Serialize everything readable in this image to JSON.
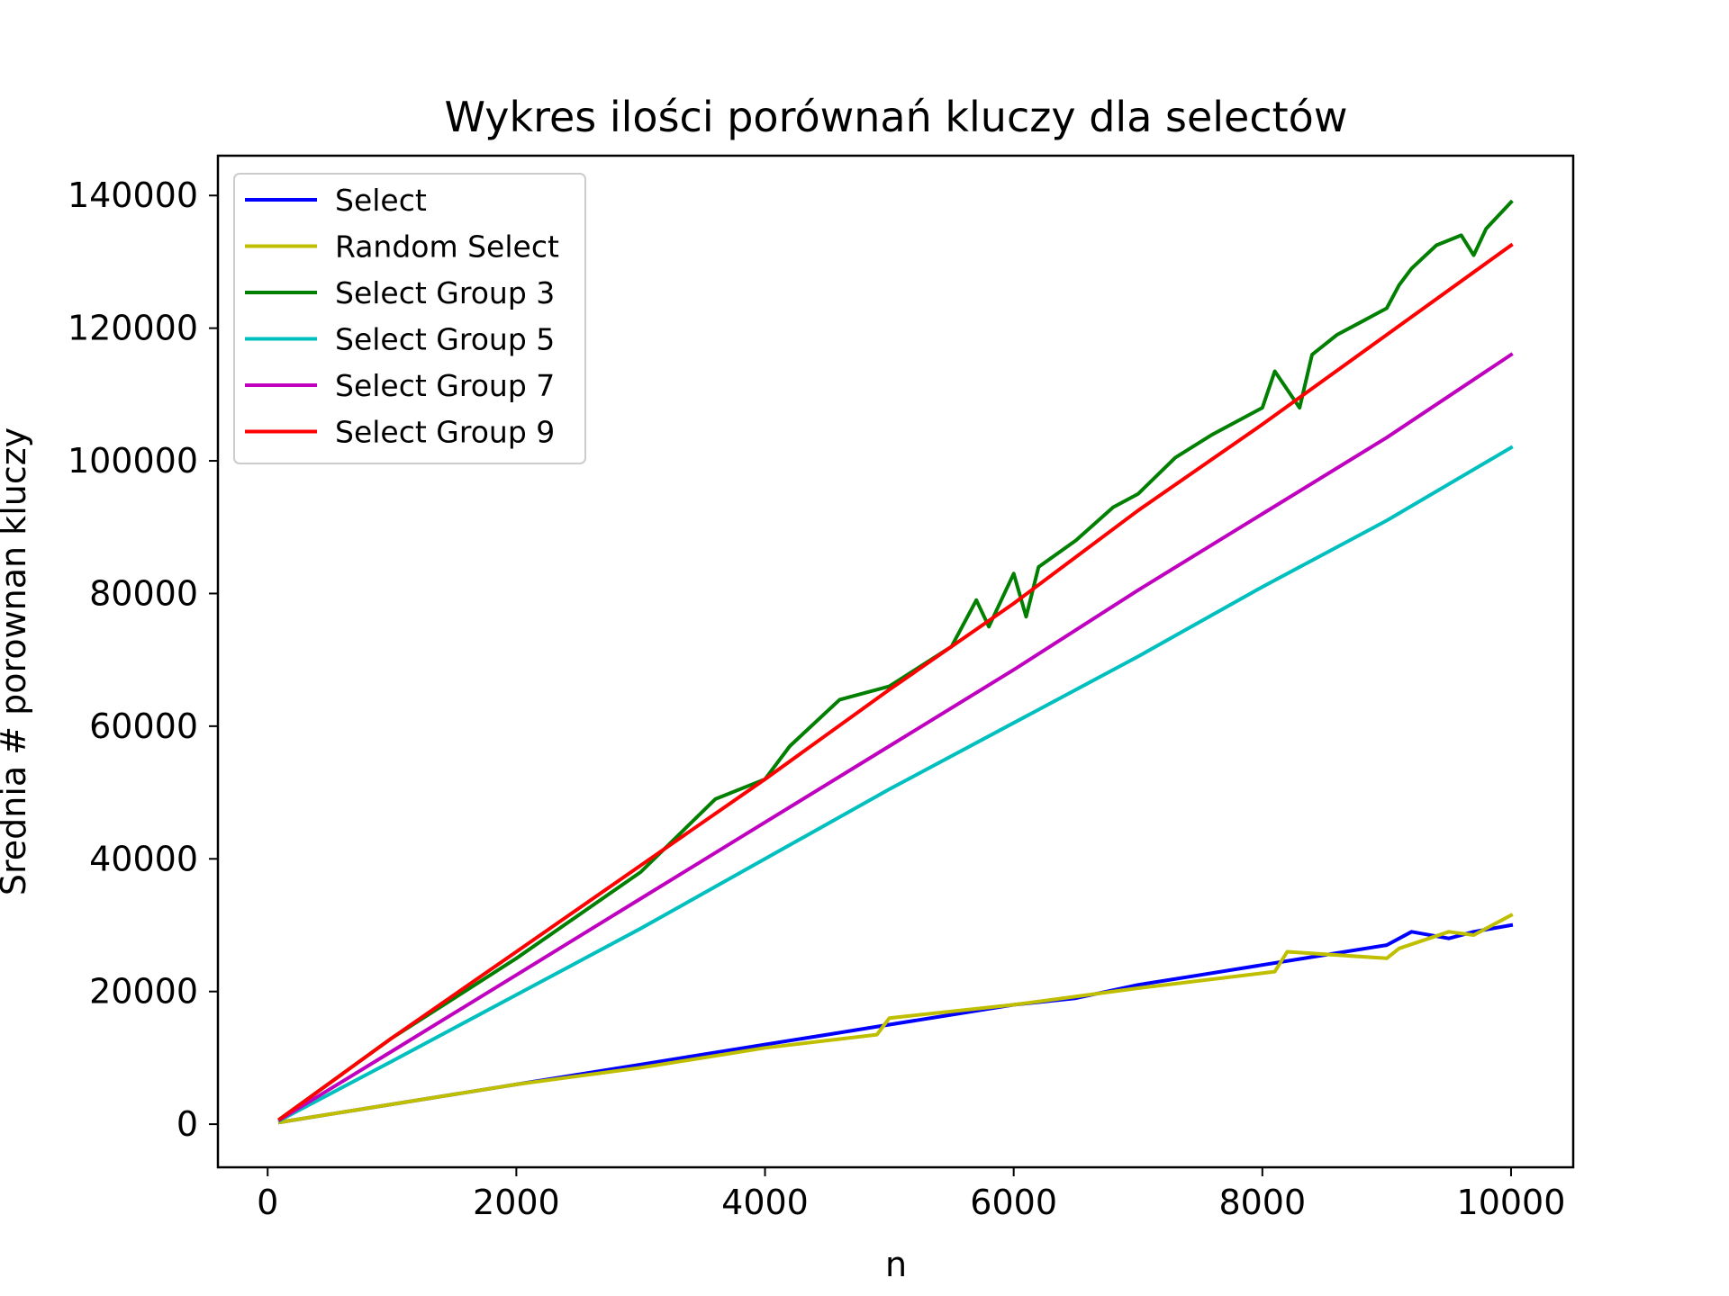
{
  "chart_data": {
    "type": "line",
    "title": "Wykres ilości porównań kluczy dla selectów",
    "xlabel": "n",
    "ylabel": "Srednia # porownan kluczy",
    "xlim": [
      -400,
      10500
    ],
    "ylim": [
      -6500,
      146000
    ],
    "xticks": [
      0,
      2000,
      4000,
      6000,
      8000,
      10000
    ],
    "xtick_labels": [
      "0",
      "2000",
      "4000",
      "6000",
      "8000",
      "10000"
    ],
    "yticks": [
      0,
      20000,
      40000,
      60000,
      80000,
      100000,
      120000,
      140000
    ],
    "ytick_labels": [
      "0",
      "20000",
      "40000",
      "60000",
      "80000",
      "100000",
      "120000",
      "140000"
    ],
    "grid": false,
    "legend": "top-left",
    "series": [
      {
        "name": "Select",
        "color": "#0000ff",
        "x": [
          100,
          1000,
          2000,
          3000,
          4000,
          4500,
          5000,
          5500,
          6000,
          6500,
          7000,
          7500,
          8000,
          8500,
          9000,
          9200,
          9500,
          9700,
          10000
        ],
        "y": [
          300,
          3000,
          6000,
          9000,
          12000,
          13500,
          15000,
          16500,
          18000,
          19000,
          21000,
          22500,
          24000,
          25500,
          27000,
          29000,
          28000,
          29000,
          30000
        ]
      },
      {
        "name": "Random Select",
        "color": "#bfbf00",
        "x": [
          100,
          1000,
          2000,
          3000,
          4000,
          4900,
          5000,
          6000,
          7000,
          8100,
          8200,
          9000,
          9100,
          9500,
          9700,
          10000
        ],
        "y": [
          300,
          3000,
          6000,
          8500,
          11500,
          13500,
          16000,
          18000,
          20500,
          23000,
          26000,
          25000,
          26500,
          29000,
          28500,
          31500
        ]
      },
      {
        "name": "Select Group 3",
        "color": "#007f00",
        "x": [
          100,
          1000,
          2000,
          3000,
          3600,
          4000,
          4200,
          4600,
          5000,
          5500,
          5700,
          5800,
          6000,
          6100,
          6200,
          6500,
          6800,
          7000,
          7300,
          7600,
          8000,
          8100,
          8300,
          8400,
          8600,
          8800,
          9000,
          9100,
          9200,
          9400,
          9600,
          9700,
          9800,
          10000
        ],
        "y": [
          800,
          13000,
          25000,
          38000,
          49000,
          52000,
          57000,
          64000,
          66000,
          72000,
          79000,
          75000,
          83000,
          76500,
          84000,
          88000,
          93000,
          95000,
          100500,
          104000,
          108000,
          113500,
          108000,
          116000,
          119000,
          121000,
          123000,
          126500,
          129000,
          132500,
          134000,
          131000,
          135000,
          139000
        ]
      },
      {
        "name": "Select Group 5",
        "color": "#00bfbf",
        "x": [
          100,
          1000,
          2000,
          3000,
          4000,
          5000,
          6000,
          7000,
          8000,
          9000,
          10000
        ],
        "y": [
          600,
          9500,
          19500,
          29500,
          40000,
          50500,
          60500,
          70500,
          81000,
          91000,
          102000
        ]
      },
      {
        "name": "Select Group 7",
        "color": "#bf00bf",
        "x": [
          100,
          1000,
          2000,
          3000,
          4000,
          5000,
          6000,
          7000,
          8000,
          9000,
          10000
        ],
        "y": [
          700,
          11000,
          22500,
          34000,
          45500,
          57000,
          68500,
          80500,
          92000,
          103500,
          116000
        ]
      },
      {
        "name": "Select Group 9",
        "color": "#ff0000",
        "x": [
          100,
          1000,
          2000,
          3000,
          4000,
          5000,
          6000,
          7000,
          8000,
          9000,
          10000
        ],
        "y": [
          800,
          13000,
          26000,
          39000,
          52000,
          65500,
          78500,
          92500,
          105500,
          119000,
          132500
        ]
      }
    ]
  }
}
